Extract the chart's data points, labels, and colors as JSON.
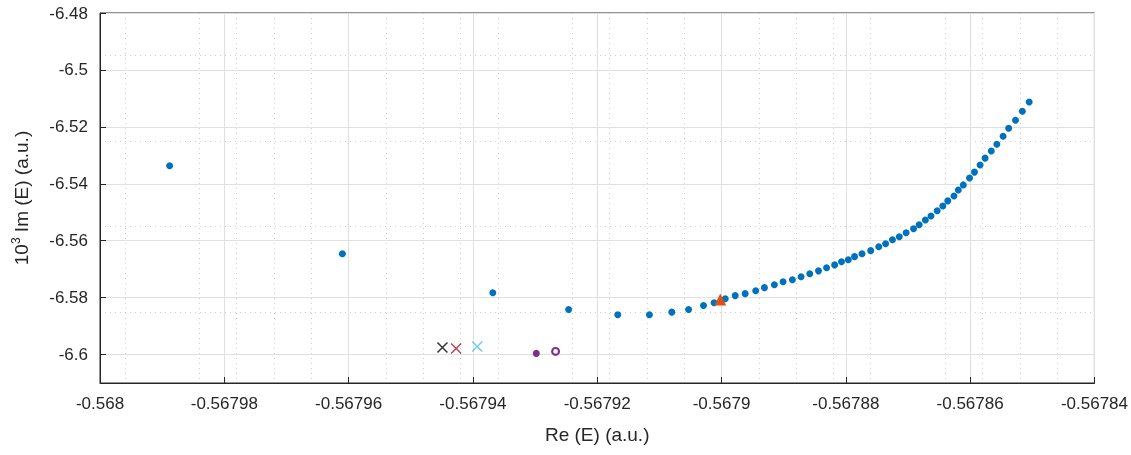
{
  "chart_data": {
    "type": "scatter",
    "xlabel": "Re (E) (a.u.)",
    "ylabel": "10$^{3}$ Im (E) (a.u.)",
    "xlim": [
      -0.568,
      -0.56784
    ],
    "xticks": [
      -0.568,
      -0.56798,
      -0.56796,
      -0.56794,
      -0.56792,
      -0.5679,
      -0.56788,
      -0.56786,
      -0.56784
    ],
    "ylim": [
      -6.61,
      -6.48
    ],
    "yticks": [
      -6.48,
      -6.5,
      -6.52,
      -6.54,
      -6.56,
      -6.58,
      -6.6
    ],
    "grid": true,
    "series": [
      {
        "color": "#0072bd",
        "marker": "circle",
        "x": [
          -0.5679888,
          -0.567961,
          -0.5679368,
          -0.5679246,
          -0.5679167,
          -0.5679116,
          -0.567908,
          -0.5679053,
          -0.5679029,
          -0.5679012,
          -0.5678994,
          -0.5678978,
          -0.5678962,
          -0.5678945,
          -0.5678931,
          -0.5678915,
          -0.5678901,
          -0.5678886,
          -0.5678872,
          -0.5678858,
          -0.5678844,
          -0.5678831,
          -0.5678818,
          -0.5678807,
          -0.5678796,
          -0.5678786,
          -0.5678774,
          -0.567876,
          -0.5678747,
          -0.5678736,
          -0.5678725,
          -0.5678714,
          -0.5678703,
          -0.5678691,
          -0.5678682,
          -0.5678672,
          -0.5678663,
          -0.5678653,
          -0.5678644,
          -0.5678636,
          -0.5678626,
          -0.5678619,
          -0.5678611,
          -0.5678601,
          -0.5678593,
          -0.5678584,
          -0.5678576,
          -0.5678566,
          -0.5678557,
          -0.5678547,
          -0.5678538,
          -0.5678527,
          -0.5678516,
          -0.5678505
        ],
        "values": [
          -6.5337,
          -6.5646,
          -6.5783,
          -6.5842,
          -6.586,
          -6.586,
          -6.5851,
          -6.5842,
          -6.5828,
          -6.5818,
          -6.5804,
          -6.5793,
          -6.5786,
          -6.5776,
          -6.5765,
          -6.5755,
          -6.5744,
          -6.5737,
          -6.5727,
          -6.5716,
          -6.5706,
          -6.5695,
          -6.5685,
          -6.5674,
          -6.5667,
          -6.5656,
          -6.5646,
          -6.5635,
          -6.5621,
          -6.5611,
          -6.5597,
          -6.5586,
          -6.5572,
          -6.5558,
          -6.5544,
          -6.5527,
          -6.5513,
          -6.5495,
          -6.5478,
          -6.546,
          -6.5443,
          -6.5422,
          -6.5404,
          -6.538,
          -6.5359,
          -6.5334,
          -6.531,
          -6.5285,
          -6.5261,
          -6.5233,
          -6.5205,
          -6.5177,
          -6.5145,
          -6.5113
        ]
      },
      {
        "color": "#d95319",
        "marker": "triangle",
        "x": [
          -0.5679002
        ],
        "values": [
          -6.5807
        ]
      },
      {
        "color": "#000000",
        "marker": "cross",
        "x": [
          -0.5679449
        ],
        "values": [
          -6.5975
        ]
      },
      {
        "color": "#a2142f",
        "marker": "cross",
        "x": [
          -0.5679427
        ],
        "values": [
          -6.5979
        ]
      },
      {
        "color": "#4dbeee",
        "marker": "cross",
        "x": [
          -0.5679393
        ],
        "values": [
          -6.5972
        ]
      },
      {
        "color": "#7e2f8e",
        "marker": "circle",
        "x": [
          -0.5679298
        ],
        "values": [
          -6.5996
        ]
      },
      {
        "color": "#7e2f8e",
        "marker": "circle-open",
        "x": [
          -0.5679267
        ],
        "values": [
          -6.5989
        ]
      }
    ]
  }
}
